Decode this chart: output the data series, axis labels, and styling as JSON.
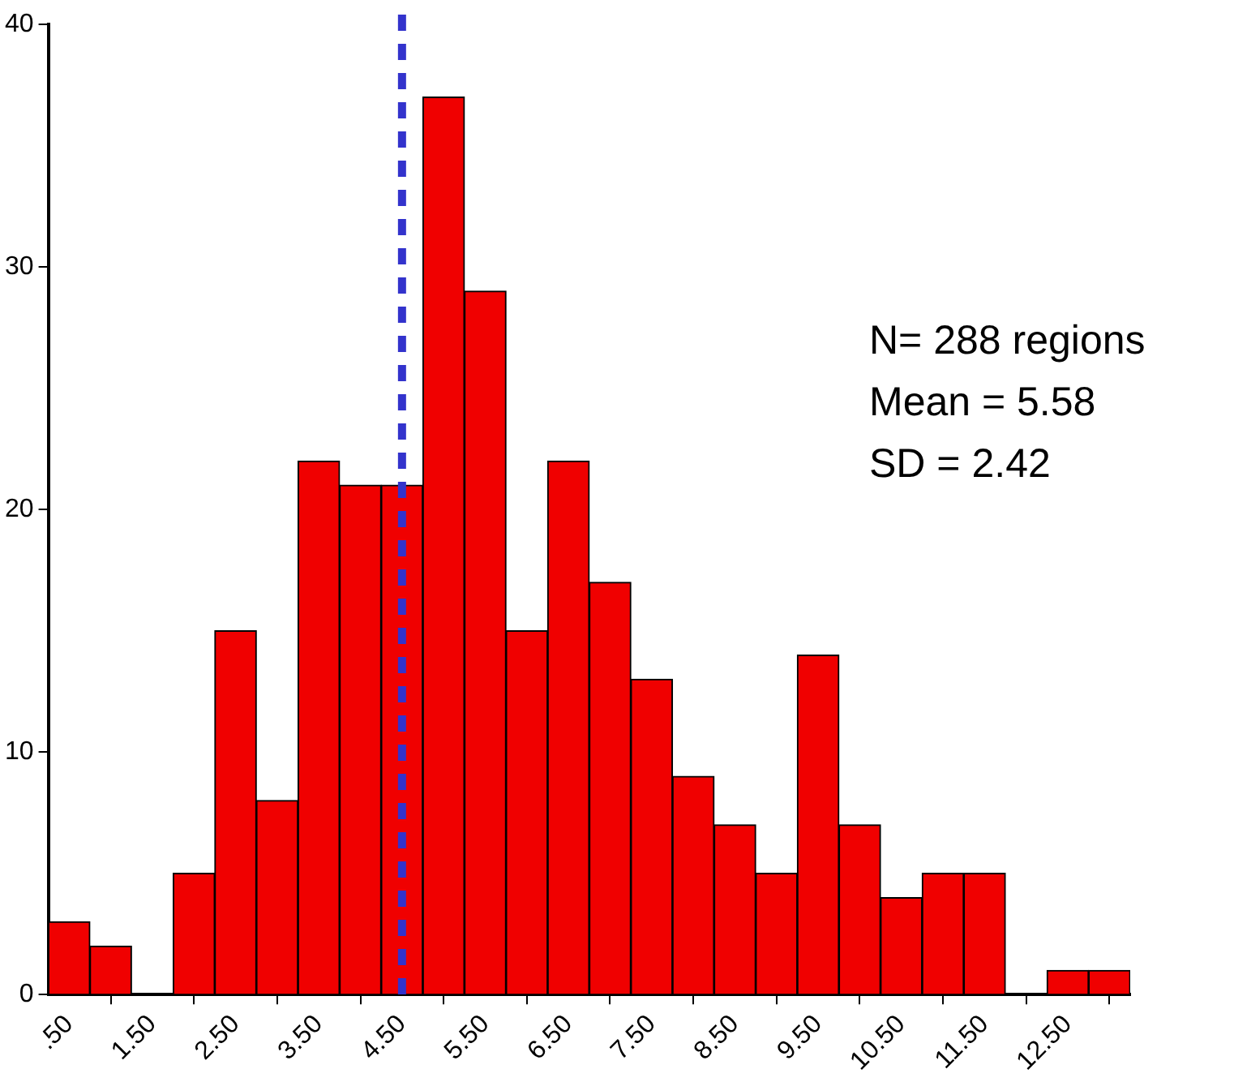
{
  "chart_data": {
    "type": "histogram",
    "bins": [
      0.25,
      0.75,
      1.25,
      1.75,
      2.25,
      2.75,
      3.25,
      3.75,
      4.25,
      4.75,
      5.25,
      5.75,
      6.25,
      6.75,
      7.25,
      7.75,
      8.25,
      8.75,
      9.25,
      9.75,
      10.25,
      10.75,
      11.25,
      11.75,
      12.25,
      12.75,
      13.25
    ],
    "values": [
      3,
      2,
      0,
      5,
      15,
      8,
      22,
      21,
      21,
      37,
      29,
      15,
      22,
      17,
      13,
      9,
      7,
      5,
      14,
      7,
      4,
      5,
      5,
      0,
      1,
      1
    ],
    "color": "#f00000",
    "xlim": [
      0.25,
      13.25
    ],
    "xticks": [
      {
        "value": 0.5,
        "label": ".50"
      },
      {
        "value": 1.5,
        "label": "1.50"
      },
      {
        "value": 2.5,
        "label": "2.50"
      },
      {
        "value": 3.5,
        "label": "3.50"
      },
      {
        "value": 4.5,
        "label": "4.50"
      },
      {
        "value": 5.5,
        "label": "5.50"
      },
      {
        "value": 6.5,
        "label": "6.50"
      },
      {
        "value": 7.5,
        "label": "7.50"
      },
      {
        "value": 8.5,
        "label": "8.50"
      },
      {
        "value": 9.5,
        "label": "9.50"
      },
      {
        "value": 10.5,
        "label": "10.50"
      },
      {
        "value": 11.5,
        "label": "11.50"
      },
      {
        "value": 12.5,
        "label": "12.50"
      }
    ],
    "ylim": [
      0,
      40
    ],
    "yticks": [
      0,
      10,
      20,
      30,
      40
    ],
    "grid": false,
    "legend": false,
    "ref_lines": [
      {
        "axis": "x",
        "value": 4.5,
        "color": "#3333cc",
        "line_style": "dashed"
      }
    ],
    "annotations": [
      "N= 288 regions",
      "Mean = 5.58",
      "SD = 2.42"
    ]
  }
}
